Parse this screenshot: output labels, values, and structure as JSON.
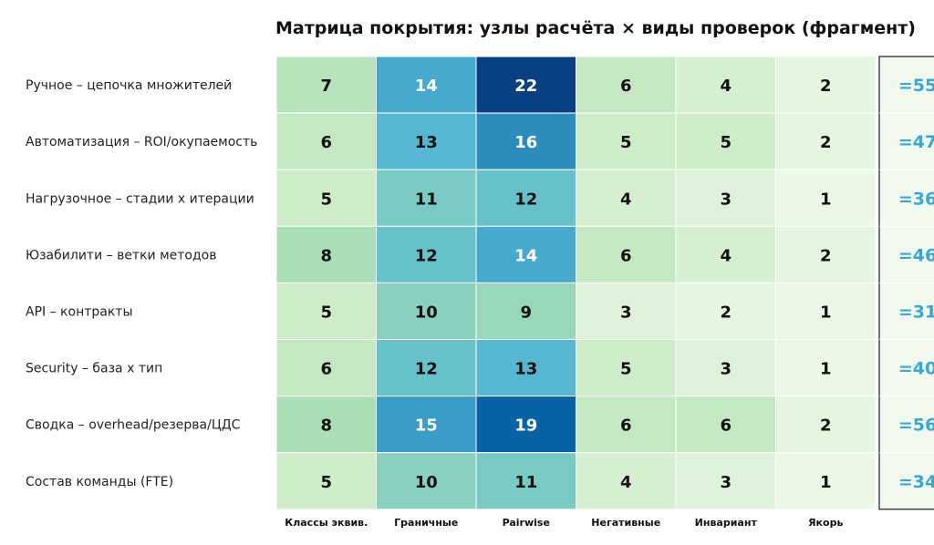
{
  "chart_data": {
    "type": "heatmap",
    "title": "Матрица покрытия: узлы расчёта × виды проверок (фрагмент)",
    "rows": [
      "Ручное – цепочка множителей",
      "Автоматизация – ROI/окупаемость",
      "Нагрузочное – стадии x итерации",
      "Юзабилити – ветки методов",
      "API – контракты",
      "Security – база x тип",
      "Сводка – overhead/резерва/ЦДС",
      "Состав команды (FTE)"
    ],
    "columns": [
      "Классы эквив.",
      "Граничные",
      "Pairwise",
      "Негативные",
      "Инвариант",
      "Якорь"
    ],
    "values": [
      [
        7,
        14,
        22,
        6,
        4,
        2
      ],
      [
        6,
        13,
        16,
        5,
        5,
        2
      ],
      [
        5,
        11,
        12,
        4,
        3,
        1
      ],
      [
        8,
        12,
        14,
        6,
        4,
        2
      ],
      [
        5,
        10,
        9,
        3,
        2,
        1
      ],
      [
        6,
        12,
        13,
        5,
        3,
        1
      ],
      [
        8,
        15,
        19,
        6,
        6,
        2
      ],
      [
        5,
        10,
        11,
        4,
        3,
        1
      ]
    ],
    "row_totals": [
      "=55",
      "=47",
      "=36",
      "=46",
      "=31",
      "=40",
      "=56",
      "=34"
    ],
    "color_scale": [
      "#f7fcf0",
      "#e0f3db",
      "#ccebc5",
      "#a8ddb5",
      "#7bccc4",
      "#4eb3d3",
      "#2b8cbe",
      "#0868ac",
      "#084081"
    ],
    "colors": {
      "total_text": "#3aa6d6",
      "dark_text": "#111111",
      "light_text": "#ffffff"
    }
  }
}
